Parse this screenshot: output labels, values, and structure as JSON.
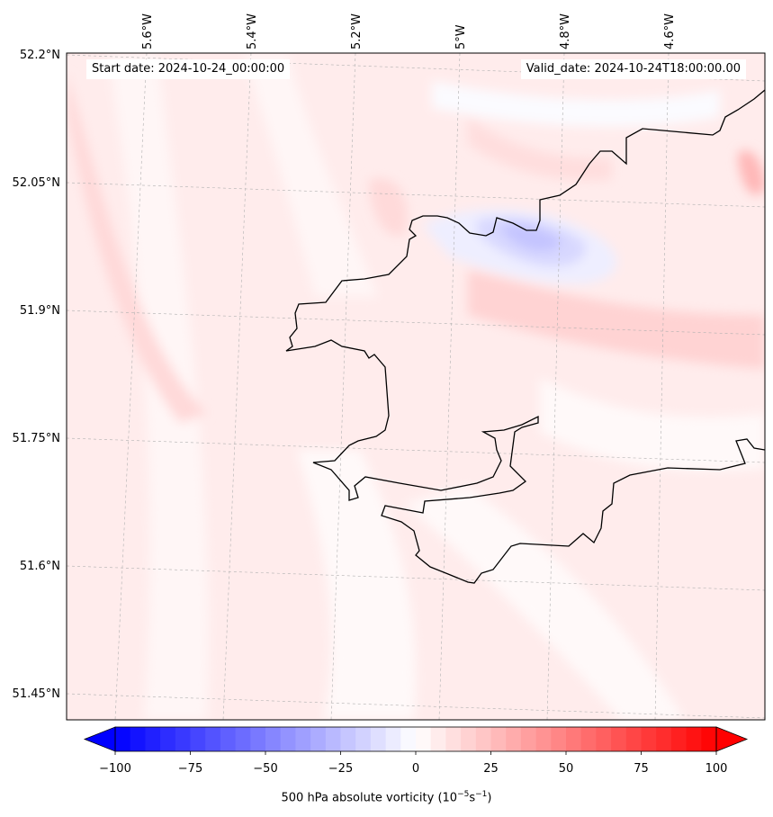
{
  "map": {
    "start_label": "Start date: 2024-10-24_00:00:00",
    "valid_label": "Valid_date: 2024-10-24T18:00:00.00",
    "lon_ticks": [
      "5.6°W",
      "5.4°W",
      "5.2°W",
      "5°W",
      "4.8°W",
      "4.6°W"
    ],
    "lat_ticks": [
      "52.2°N",
      "52.05°N",
      "51.9°N",
      "51.75°N",
      "51.6°N",
      "51.45°N"
    ]
  },
  "colorbar": {
    "ticks": [
      "−100",
      "−75",
      "−50",
      "−25",
      "0",
      "25",
      "50",
      "75",
      "100"
    ],
    "label_text": "500 hPa absolute vorticity (10",
    "label_exp1": "−5",
    "label_mid": "s",
    "label_exp2": "−1",
    "label_end": ")",
    "min": -100,
    "max": 100,
    "low_color": "#0000ff",
    "high_color": "#ff0000"
  }
}
